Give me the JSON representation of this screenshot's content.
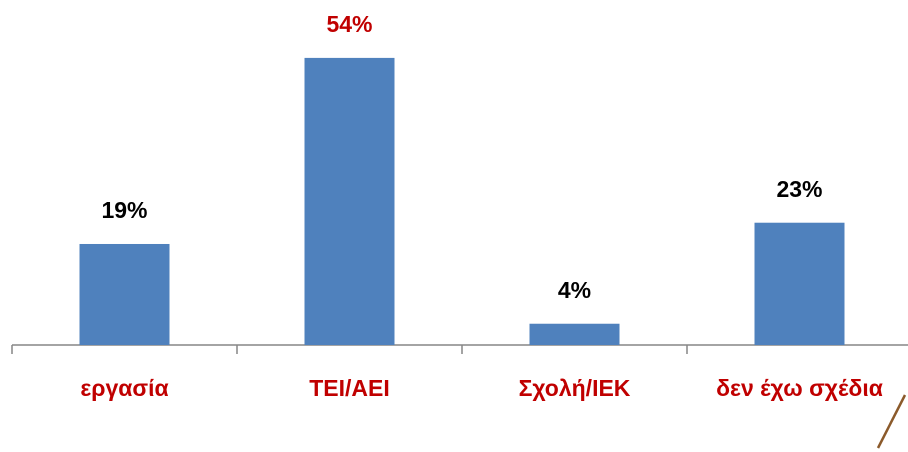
{
  "chart_data": {
    "type": "bar",
    "categories": [
      "εργασία",
      "ΤΕΙ/ΑΕΙ",
      "Σχολή/ΙΕΚ",
      "δεν έχω σχέδια"
    ],
    "values": [
      19,
      54,
      4,
      23
    ],
    "value_labels": [
      "19%",
      "54%",
      "4%",
      "23%"
    ],
    "value_label_colors": [
      "#000000",
      "#c00000",
      "#000000",
      "#000000"
    ],
    "category_label_color": "#c00000",
    "color": "#4f81bd",
    "ylim": [
      0,
      60
    ]
  }
}
